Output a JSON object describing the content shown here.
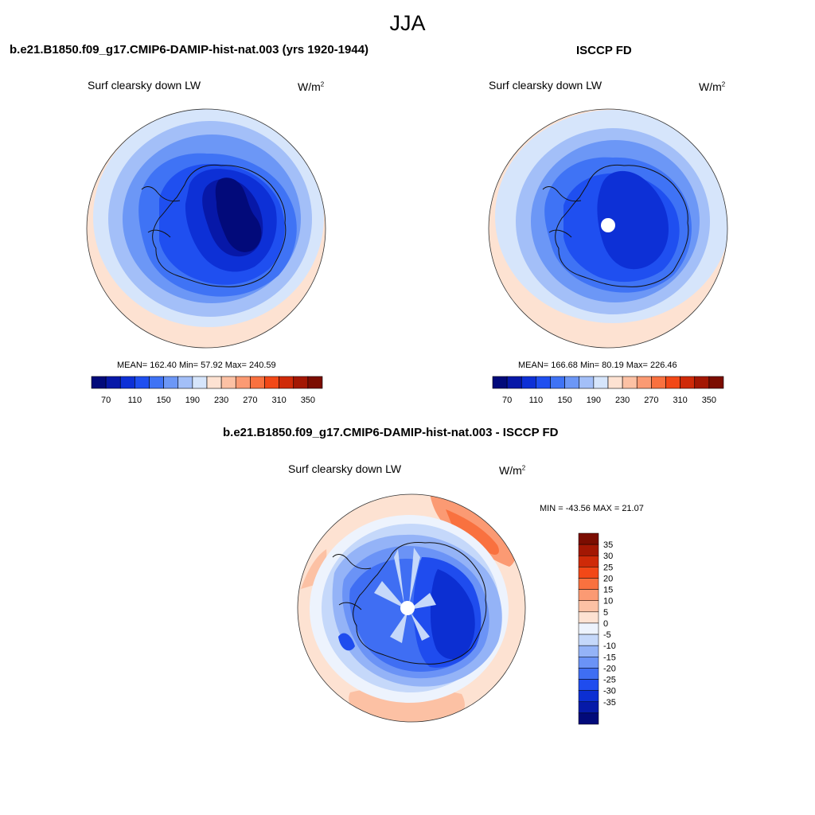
{
  "figure": {
    "title": "JJA"
  },
  "panels": [
    {
      "id": "model",
      "title": "b.e21.B1850.f09_g17.CMIP6-DAMIP-hist-nat.003 (yrs 1920-1944)",
      "variable": "Surf clearsky down LW",
      "unit_base": "W/m",
      "unit_exp": "2",
      "stats": "MEAN= 162.40  Min=  57.92  Max= 240.59",
      "colorbar": {
        "colors": [
          "#020a7a",
          "#0718a8",
          "#0d30d6",
          "#1f4ff0",
          "#3f73f5",
          "#6c97f6",
          "#a3bff8",
          "#d6e5fb",
          "#fde2d2",
          "#fcc1a4",
          "#fb9a73",
          "#f9713f",
          "#f24817",
          "#cf2a08",
          "#a31703",
          "#7b0d01"
        ],
        "labels": [
          "70",
          "110",
          "150",
          "190",
          "230",
          "270",
          "310",
          "350"
        ]
      }
    },
    {
      "id": "obs",
      "title": "ISCCP FD",
      "variable": "Surf clearsky down LW",
      "unit_base": "W/m",
      "unit_exp": "2",
      "stats": "MEAN= 166.68  Min=  80.19  Max= 226.46",
      "colorbar": {
        "colors": [
          "#020a7a",
          "#0718a8",
          "#0d30d6",
          "#1f4ff0",
          "#3f73f5",
          "#6c97f6",
          "#a3bff8",
          "#d6e5fb",
          "#fde2d2",
          "#fcc1a4",
          "#fb9a73",
          "#f9713f",
          "#f24817",
          "#cf2a08",
          "#a31703",
          "#7b0d01"
        ],
        "labels": [
          "70",
          "110",
          "150",
          "190",
          "230",
          "270",
          "310",
          "350"
        ]
      }
    },
    {
      "id": "diff",
      "title": "b.e21.B1850.f09_g17.CMIP6-DAMIP-hist-nat.003 - ISCCP FD",
      "variable": "Surf clearsky down LW",
      "unit_base": "W/m",
      "unit_exp": "2",
      "stats": "MIN = -43.56 MAX =  21.07",
      "colorbar": {
        "colors": [
          "#7b0d01",
          "#a31703",
          "#cf2a08",
          "#f24817",
          "#f9713f",
          "#fb9a73",
          "#fcc1a4",
          "#fde2d2",
          "#edf3fd",
          "#c5d8fa",
          "#94b3f7",
          "#6b93f6",
          "#3f6ef3",
          "#1f4cee",
          "#0c2fd2",
          "#061aa8",
          "#020a7a"
        ],
        "labels": [
          "35",
          "30",
          "25",
          "20",
          "15",
          "10",
          "5",
          "0",
          "-5",
          "-10",
          "-15",
          "-20",
          "-25",
          "-30",
          "-35"
        ]
      }
    }
  ]
}
